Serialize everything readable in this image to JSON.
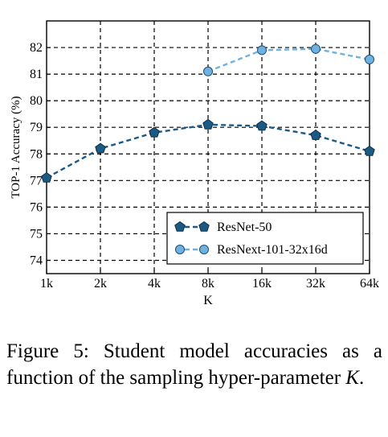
{
  "chart_data": {
    "type": "line",
    "xlabel": "K",
    "ylabel": "TOP-1 Accuracy (%)",
    "categories": [
      "1k",
      "2k",
      "4k",
      "8k",
      "16k",
      "32k",
      "64k"
    ],
    "x_scale": "log2",
    "ylim": [
      73.5,
      83
    ],
    "yticks": [
      "74",
      "75",
      "76",
      "77",
      "78",
      "79",
      "80",
      "81",
      "82"
    ],
    "grid": true,
    "grid_style": "dashed",
    "legend_position": "bottom-right",
    "series": [
      {
        "name": "ResNet-50",
        "marker": "pentagon",
        "line_style": "dashed",
        "color": "#1b5a85",
        "values": [
          77.1,
          78.2,
          78.8,
          79.1,
          79.05,
          78.7,
          78.1
        ]
      },
      {
        "name": "ResNext-101-32x16d",
        "marker": "circle",
        "line_style": "dashed",
        "color": "#6fb1e0",
        "values": [
          null,
          null,
          null,
          81.1,
          81.9,
          81.95,
          81.55
        ]
      }
    ]
  },
  "caption": {
    "label": "Figure 5:",
    "text_before": "Student model accuracies as a function of the sampling hyper-parameter",
    "variable": "K",
    "text_after": "."
  }
}
